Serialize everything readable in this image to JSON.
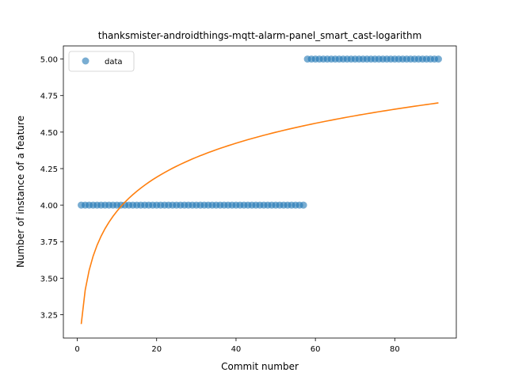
{
  "chart_data": {
    "type": "scatter",
    "title": "thanksmister-androidthings-mqtt-alarm-panel_smart_cast-logarithm",
    "xlabel": "Commit number",
    "ylabel": "Number of instance of a feature",
    "xlim": [
      -3.5,
      95.5
    ],
    "ylim": [
      3.09,
      5.09
    ],
    "xticks": [
      0,
      20,
      40,
      60,
      80
    ],
    "xtick_labels": [
      "0",
      "20",
      "40",
      "60",
      "80"
    ],
    "yticks": [
      3.25,
      3.5,
      3.75,
      4.0,
      4.25,
      4.5,
      4.75,
      5.0
    ],
    "ytick_labels": [
      "3.25",
      "3.50",
      "3.75",
      "4.00",
      "4.25",
      "4.50",
      "4.75",
      "5.00"
    ],
    "grid": false,
    "legend_position": "top-left",
    "series": [
      {
        "name": "data",
        "kind": "scatter",
        "color": "#1f77b4",
        "points": [
          {
            "x_from": 1,
            "x_to": 57,
            "step": 1,
            "y": 4.0
          },
          {
            "x_from": 58,
            "x_to": 91,
            "step": 1,
            "y": 5.0
          }
        ]
      },
      {
        "kind": "line",
        "color": "#ff7f0e",
        "fit": "logarithmic",
        "a": 3.186,
        "b": 0.3356,
        "x_range": [
          1,
          91
        ]
      }
    ]
  }
}
